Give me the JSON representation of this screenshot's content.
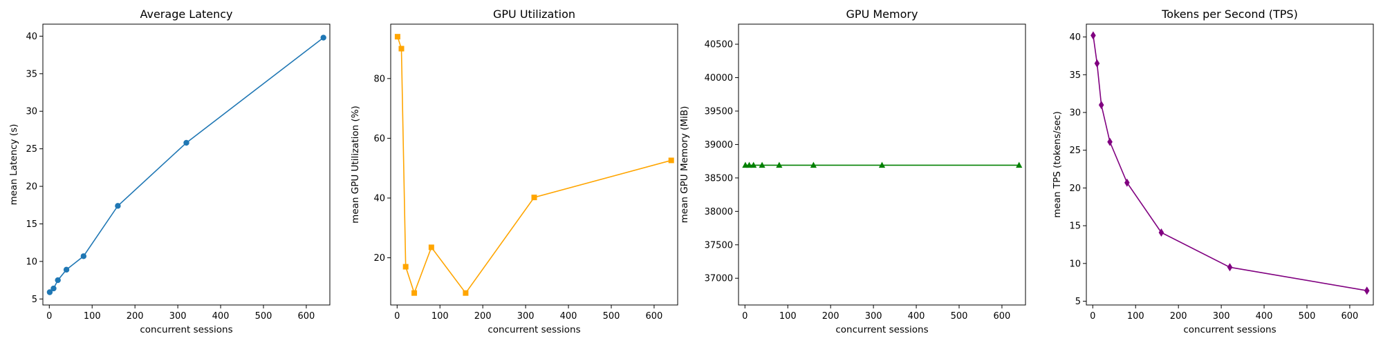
{
  "chart_data": [
    {
      "type": "line",
      "title": "Average Latency",
      "xlabel": "concurrent sessions",
      "ylabel": "mean Latency (s)",
      "xlim": [
        -15,
        655
      ],
      "ylim": [
        4.2,
        41.6
      ],
      "xticks": [
        0,
        100,
        200,
        300,
        400,
        500,
        600
      ],
      "yticks": [
        5,
        10,
        15,
        20,
        25,
        30,
        35,
        40
      ],
      "color": "#1f77b4",
      "marker": "circle",
      "grid": false,
      "series": [
        {
          "x": [
            1,
            10,
            20,
            40,
            80,
            160,
            320,
            640
          ],
          "y": [
            5.9,
            6.4,
            7.5,
            8.9,
            10.7,
            17.4,
            25.8,
            39.8
          ]
        }
      ]
    },
    {
      "type": "line",
      "title": "GPU Utilization",
      "xlabel": "concurrent sessions",
      "ylabel": "mean GPU Utilization (%)",
      "xlim": [
        -15,
        655
      ],
      "ylim": [
        4.2,
        98.2
      ],
      "xticks": [
        0,
        100,
        200,
        300,
        400,
        500,
        600
      ],
      "yticks": [
        20,
        40,
        60,
        80
      ],
      "color": "#ffa500",
      "marker": "square",
      "grid": false,
      "series": [
        {
          "x": [
            1,
            10,
            20,
            40,
            80,
            160,
            320,
            640
          ],
          "y": [
            94,
            90,
            17,
            8.2,
            23.5,
            8.2,
            40.2,
            52.6
          ]
        }
      ]
    },
    {
      "type": "line",
      "title": "GPU Memory",
      "xlabel": "concurrent sessions",
      "ylabel": "mean GPU Memory (MiB)",
      "xlim": [
        -15,
        655
      ],
      "ylim": [
        36600,
        40800
      ],
      "xticks": [
        0,
        100,
        200,
        300,
        400,
        500,
        600
      ],
      "yticks": [
        37000,
        37500,
        38000,
        38500,
        39000,
        39500,
        40000,
        40500
      ],
      "color": "#008000",
      "marker": "triangle",
      "grid": false,
      "series": [
        {
          "x": [
            1,
            10,
            20,
            40,
            80,
            160,
            320,
            640
          ],
          "y": [
            38690,
            38690,
            38690,
            38690,
            38690,
            38690,
            38690,
            38690
          ]
        }
      ]
    },
    {
      "type": "line",
      "title": "Tokens per Second (TPS)",
      "xlabel": "concurrent sessions",
      "ylabel": "mean TPS (tokens/sec)",
      "xlim": [
        -15,
        655
      ],
      "ylim": [
        4.5,
        41.7
      ],
      "xticks": [
        0,
        100,
        200,
        300,
        400,
        500,
        600
      ],
      "yticks": [
        5,
        10,
        15,
        20,
        25,
        30,
        35,
        40
      ],
      "color": "#800080",
      "marker": "diamond",
      "grid": false,
      "series": [
        {
          "x": [
            1,
            10,
            20,
            40,
            80,
            160,
            320,
            640
          ],
          "y": [
            40.2,
            36.5,
            31,
            26.1,
            20.7,
            14.1,
            9.5,
            6.4
          ]
        }
      ]
    }
  ]
}
